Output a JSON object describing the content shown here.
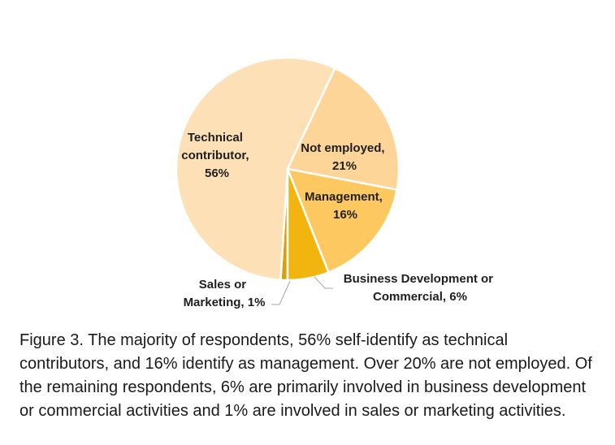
{
  "chart_data": {
    "type": "pie",
    "slices": [
      {
        "name": "Technical contributor",
        "value": 56,
        "color": "#FEE0B6",
        "label_lines": [
          "Technical",
          "contributor,",
          "56%"
        ]
      },
      {
        "name": "Not employed",
        "value": 21,
        "color": "#FED599",
        "label_lines": [
          "Not employed,",
          "21%"
        ]
      },
      {
        "name": "Management",
        "value": 16,
        "color": "#FDC85F",
        "label_lines": [
          "Management,",
          "16%"
        ]
      },
      {
        "name": "Business Development or Commercial",
        "value": 6,
        "color": "#F2B510",
        "label_lines": [
          "Business Development or",
          "Commercial, 6%"
        ]
      },
      {
        "name": "Sales or Marketing",
        "value": 1,
        "color": "#D9A008",
        "label_lines": [
          "Sales or",
          "Marketing, 1%"
        ]
      }
    ],
    "start_angle_deg": 180,
    "direction": "clockwise",
    "legend": "none"
  },
  "caption": {
    "lines": [
      "Figure 3.  The majority of respondents, 56% self-identify as technical",
      "contributors, and 16% identify as management.  Over 20% are not employed. Of",
      "the remaining respondents, 6% are primarily involved in business development",
      "or commercial activities and 1% are involved in sales or marketing activities."
    ]
  }
}
